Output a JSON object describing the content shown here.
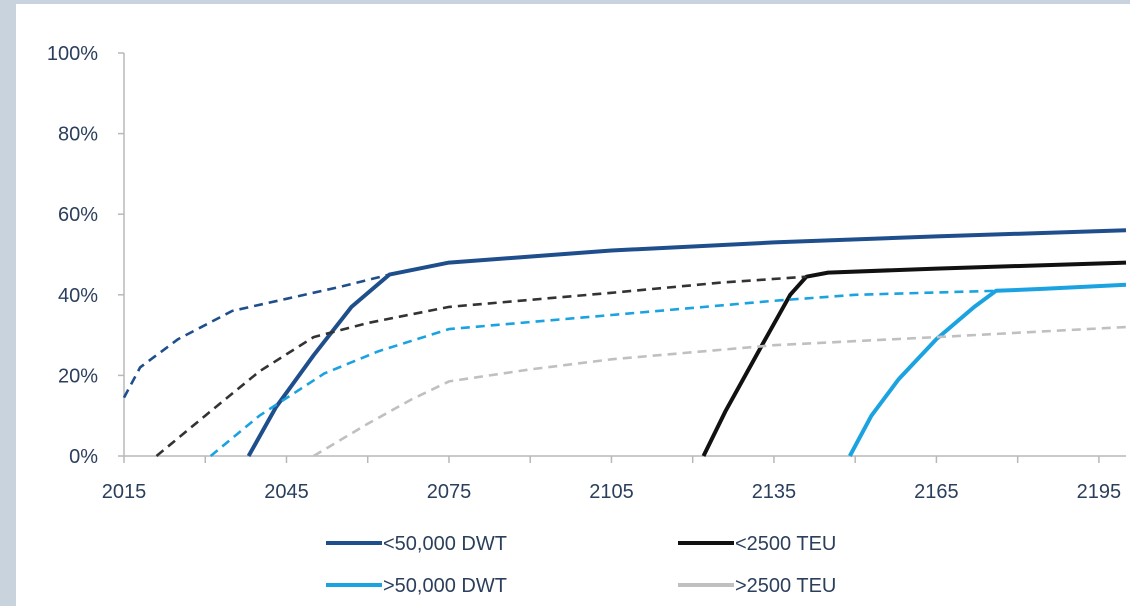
{
  "chart_data": {
    "type": "line",
    "title": "",
    "xlabel": "",
    "ylabel": "",
    "xlim": [
      2015,
      2200
    ],
    "ylim": [
      0,
      100
    ],
    "x_ticks": [
      "2015",
      "2045",
      "2075",
      "2105",
      "2135",
      "2165",
      "2195"
    ],
    "y_ticks": [
      "0%",
      "20%",
      "40%",
      "60%",
      "80%",
      "100%"
    ],
    "grid": false,
    "legend_position": "bottom",
    "series": [
      {
        "name": "<50,000 DWT",
        "color": "#1f4e8c",
        "style": "solid",
        "points": [
          [
            2038,
            0
          ],
          [
            2043,
            12
          ],
          [
            2050,
            25
          ],
          [
            2057,
            37
          ],
          [
            2064,
            45
          ],
          [
            2075,
            48
          ],
          [
            2105,
            51
          ],
          [
            2135,
            53
          ],
          [
            2165,
            54.5
          ],
          [
            2200,
            56
          ]
        ]
      },
      {
        "name": "<50,000 DWT",
        "color": "#1f4e8c",
        "style": "dashed",
        "points": [
          [
            2015,
            14.5
          ],
          [
            2018,
            22
          ],
          [
            2025,
            29
          ],
          [
            2035,
            36
          ],
          [
            2045,
            39
          ],
          [
            2055,
            42
          ],
          [
            2064,
            45
          ]
        ]
      },
      {
        "name": "<2500 TEU",
        "color": "#111111",
        "style": "solid",
        "points": [
          [
            2122,
            0
          ],
          [
            2126,
            11
          ],
          [
            2133,
            28
          ],
          [
            2138,
            40
          ],
          [
            2141,
            44.5
          ],
          [
            2145,
            45.5
          ],
          [
            2165,
            46.5
          ],
          [
            2200,
            48
          ]
        ]
      },
      {
        "name": "<2500 TEU",
        "color": "#333333",
        "style": "dashed",
        "points": [
          [
            2021,
            0
          ],
          [
            2030,
            10
          ],
          [
            2040,
            21
          ],
          [
            2050,
            29.5
          ],
          [
            2060,
            33
          ],
          [
            2075,
            37
          ],
          [
            2105,
            40.5
          ],
          [
            2125,
            43
          ],
          [
            2141,
            44.5
          ]
        ]
      },
      {
        "name": ">50,000 DWT",
        "color": "#1aa3e0",
        "style": "solid",
        "points": [
          [
            2149,
            0
          ],
          [
            2153,
            10
          ],
          [
            2158,
            19
          ],
          [
            2165,
            29
          ],
          [
            2172,
            37
          ],
          [
            2176,
            41
          ],
          [
            2185,
            41.5
          ],
          [
            2200,
            42.5
          ]
        ]
      },
      {
        "name": ">50,000 DWT",
        "color": "#1aa3e0",
        "style": "dashed",
        "points": [
          [
            2031,
            0
          ],
          [
            2040,
            10
          ],
          [
            2052,
            20.5
          ],
          [
            2062,
            26
          ],
          [
            2075,
            31.5
          ],
          [
            2105,
            35
          ],
          [
            2135,
            38.5
          ],
          [
            2150,
            40
          ],
          [
            2176,
            41
          ]
        ]
      },
      {
        "name": ">2500 TEU",
        "color": "#c0c0c0",
        "style": "dashed",
        "points": [
          [
            2050,
            0
          ],
          [
            2060,
            8
          ],
          [
            2068,
            14
          ],
          [
            2075,
            18.5
          ],
          [
            2090,
            21.5
          ],
          [
            2105,
            24
          ],
          [
            2135,
            27.5
          ],
          [
            2165,
            29.5
          ],
          [
            2200,
            32
          ]
        ]
      }
    ],
    "legend": [
      {
        "name": "<50,000 DWT",
        "color": "#1f4e8c"
      },
      {
        "name": "<2500 TEU",
        "color": "#111111"
      },
      {
        "name": ">50,000 DWT",
        "color": "#1aa3e0"
      },
      {
        "name": ">2500 TEU",
        "color": "#c0c0c0"
      }
    ]
  }
}
